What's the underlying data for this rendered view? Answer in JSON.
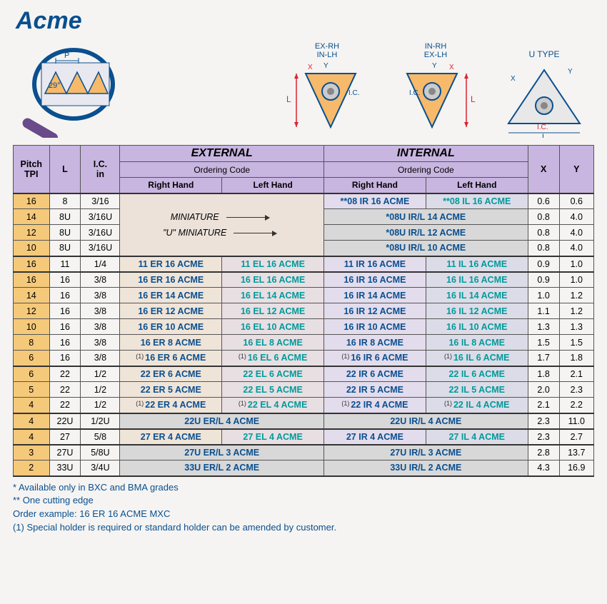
{
  "title": "Acme",
  "diagrams": {
    "thread_angle": "29°",
    "thread_pitch_label": "P",
    "left": {
      "top_left": "EX-RH",
      "top_right": "IN-RH",
      "bot_left": "IN-LH",
      "bot_right": "EX-LH",
      "L": "L",
      "X": "X",
      "Y": "Y",
      "IC": "I.C."
    },
    "utype": {
      "label": "U  TYPE",
      "L": "L",
      "X": "X",
      "Y": "Y",
      "IC": "I.C."
    }
  },
  "headers": {
    "pitch": "Pitch\nTPI",
    "L": "L",
    "IC": "I.C.\nin",
    "external": "EXTERNAL",
    "internal": "INTERNAL",
    "ordering": "Ordering Code",
    "rh": "Right Hand",
    "lh": "Left Hand",
    "X": "X",
    "Y": "Y"
  },
  "labels": {
    "miniature": "MINIATURE",
    "u_miniature": "\"U\" MINIATURE"
  },
  "rows": [
    {
      "tpi": "16",
      "L": "8",
      "IC": "3/16",
      "ext_note": "MINIATURE",
      "int_rh": "**08 IR 16  ACME",
      "int_lh": "**08 IL 16 ACME",
      "X": "0.6",
      "Y": "0.6",
      "section_top": true
    },
    {
      "tpi": "14",
      "L": "8U",
      "IC": "3/16U",
      "ext_note": "",
      "int_merged": "*08U IR/L 14 ACME",
      "X": "0.8",
      "Y": "4.0",
      "grey": true
    },
    {
      "tpi": "12",
      "L": "8U",
      "IC": "3/16U",
      "ext_note": "U_MINI",
      "int_merged": "*08U IR/L 12 ACME",
      "X": "0.8",
      "Y": "4.0",
      "grey": true
    },
    {
      "tpi": "10",
      "L": "8U",
      "IC": "3/16U",
      "ext_note": "",
      "int_merged": "*08U IR/L 10 ACME",
      "X": "0.8",
      "Y": "4.0",
      "grey": true,
      "section_bot": true
    },
    {
      "tpi": "16",
      "L": "11",
      "IC": "1/4",
      "ext_rh": "11 ER 16  ACME",
      "ext_lh": "11 EL 16  ACME",
      "int_rh": "11 IR 16  ACME",
      "int_lh": "11 IL 16  ACME",
      "X": "0.9",
      "Y": "1.0",
      "section_top": true,
      "section_bot": true
    },
    {
      "tpi": "16",
      "L": "16",
      "IC": "3/8",
      "ext_rh": "16 ER 16  ACME",
      "ext_lh": "16 EL 16  ACME",
      "int_rh": "16 IR 16  ACME",
      "int_lh": "16 IL 16  ACME",
      "X": "0.9",
      "Y": "1.0",
      "section_top": true
    },
    {
      "tpi": "14",
      "L": "16",
      "IC": "3/8",
      "ext_rh": "16 ER 14  ACME",
      "ext_lh": "16 EL 14  ACME",
      "int_rh": "16 IR 14  ACME",
      "int_lh": "16 IL 14  ACME",
      "X": "1.0",
      "Y": "1.2"
    },
    {
      "tpi": "12",
      "L": "16",
      "IC": "3/8",
      "ext_rh": "16 ER 12  ACME",
      "ext_lh": "16 EL 12  ACME",
      "int_rh": "16 IR 12  ACME",
      "int_lh": "16 IL 12  ACME",
      "X": "1.1",
      "Y": "1.2"
    },
    {
      "tpi": "10",
      "L": "16",
      "IC": "3/8",
      "ext_rh": "16 ER 10  ACME",
      "ext_lh": "16 EL 10  ACME",
      "int_rh": "16 IR 10  ACME",
      "int_lh": "16 IL 10  ACME",
      "X": "1.3",
      "Y": "1.3"
    },
    {
      "tpi": "8",
      "L": "16",
      "IC": "3/8",
      "ext_rh": "16 ER   8  ACME",
      "ext_lh": "16 EL   8  ACME",
      "int_rh": "16 IR   8  ACME",
      "int_lh": "16 IL   8  ACME",
      "X": "1.5",
      "Y": "1.5"
    },
    {
      "tpi": "6",
      "L": "16",
      "IC": "3/8",
      "ext_rh": "16 ER   6  ACME",
      "ext_lh": "16 EL   6  ACME",
      "int_rh": "16 IR   6  ACME",
      "int_lh": "16 IL   6  ACME",
      "X": "1.7",
      "Y": "1.8",
      "note1": true,
      "section_bot": true
    },
    {
      "tpi": "6",
      "L": "22",
      "IC": "1/2",
      "ext_rh": "22 ER   6  ACME",
      "ext_lh": "22 EL   6  ACME",
      "int_rh": "22 IR   6  ACME",
      "int_lh": "22 IL   6  ACME",
      "X": "1.8",
      "Y": "2.1",
      "section_top": true
    },
    {
      "tpi": "5",
      "L": "22",
      "IC": "1/2",
      "ext_rh": "22 ER   5  ACME",
      "ext_lh": "22 EL   5  ACME",
      "int_rh": "22 IR   5  ACME",
      "int_lh": "22 IL   5  ACME",
      "X": "2.0",
      "Y": "2.3"
    },
    {
      "tpi": "4",
      "L": "22",
      "IC": "1/2",
      "ext_rh": "22 ER   4  ACME",
      "ext_lh": "22 EL   4  ACME",
      "int_rh": "22 IR   4  ACME",
      "int_lh": "22 IL   4  ACME",
      "X": "2.1",
      "Y": "2.2",
      "note1": true,
      "section_bot": true
    },
    {
      "tpi": "4",
      "L": "22U",
      "IC": "1/2U",
      "ext_merged": "22U ER/L 4 ACME",
      "int_merged": "22U IR/L 4 ACME",
      "X": "2.3",
      "Y": "11.0",
      "section_top": true,
      "section_bot": true,
      "grey": true
    },
    {
      "tpi": "4",
      "L": "27",
      "IC": "5/8",
      "ext_rh": "27 ER   4  ACME",
      "ext_lh": "27 EL   4  ACME",
      "int_rh": "27 IR   4  ACME",
      "int_lh": "27 IL   4  ACME",
      "X": "2.3",
      "Y": "2.7",
      "section_top": true,
      "section_bot": true
    },
    {
      "tpi": "3",
      "L": "27U",
      "IC": "5/8U",
      "ext_merged": "27U ER/L 3 ACME",
      "int_merged": "27U IR/L 3 ACME",
      "X": "2.8",
      "Y": "13.7",
      "section_top": true,
      "grey": true
    },
    {
      "tpi": "2",
      "L": "33U",
      "IC": "3/4U",
      "ext_merged": "33U ER/L 2 ACME",
      "int_merged": "33U IR/L 2 ACME",
      "X": "4.3",
      "Y": "16.9",
      "section_bot": true,
      "grey": true
    }
  ],
  "footnotes": [
    "* Available only in BXC and BMA grades",
    "** One cutting edge",
    "Order example: 16 ER 16 ACME MXC",
    "(1) Special holder is required or standard holder can be amended by customer."
  ],
  "colors": {
    "header_bg": "#c8b5e0",
    "tpi_bg": "#f5c97a",
    "ext_rh_bg": "#efe4d8",
    "ext_lh_bg": "#e8dfe3",
    "int_rh_bg": "#e3dcec",
    "int_lh_bg": "#dcdce8",
    "navy": "#0a4f8f",
    "teal": "#009a9a",
    "page_bg": "#f5f4f2"
  }
}
